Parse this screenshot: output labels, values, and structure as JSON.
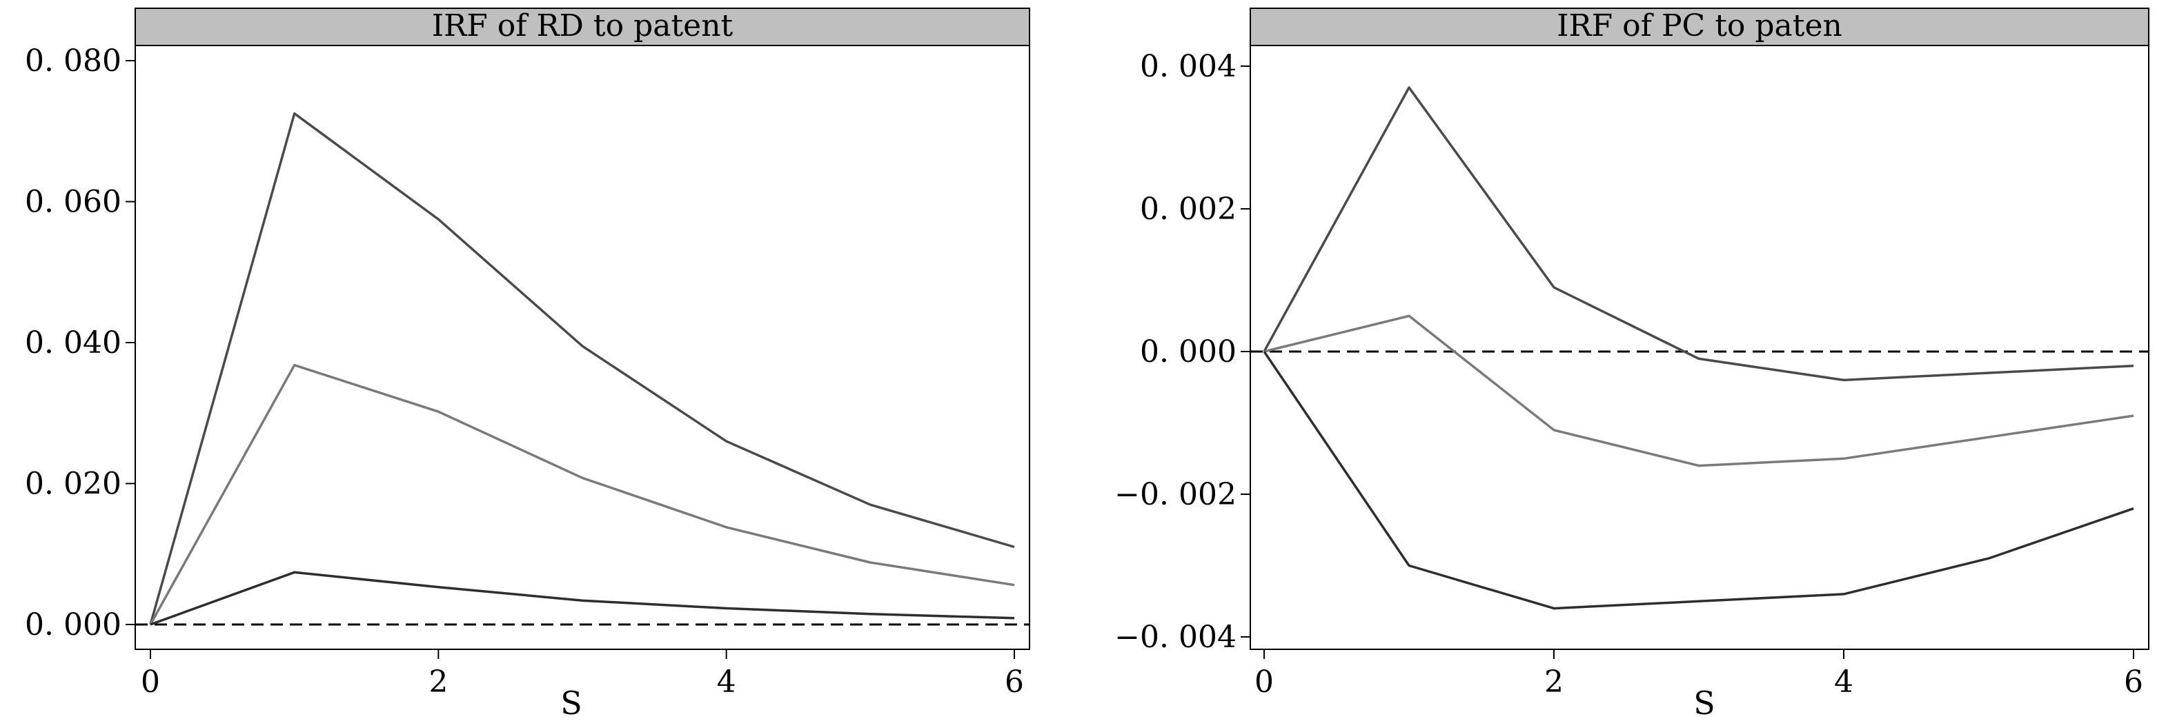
{
  "chart_data": [
    {
      "type": "line",
      "title": "IRF  of  RD to patent",
      "xlabel": "S",
      "ylabel": "",
      "xlim": [
        0,
        6
      ],
      "ylim": [
        0,
        0.08
      ],
      "xticks": [
        0,
        2,
        4,
        6
      ],
      "xtick_labels": [
        "0",
        "2",
        "4",
        "6"
      ],
      "yticks": [
        0,
        0.02,
        0.04,
        0.06,
        0.08
      ],
      "ytick_labels": [
        "0. 000",
        "0. 020",
        "0. 040",
        "0. 060",
        "0. 080"
      ],
      "x": [
        0,
        1,
        2,
        3,
        4,
        5,
        6
      ],
      "zero_line": true,
      "series": [
        {
          "values": [
            0,
            0.0725,
            0.0575,
            0.0395,
            0.026,
            0.017,
            0.011
          ],
          "color": "#4a4a4a"
        },
        {
          "values": [
            0,
            0.0368,
            0.0302,
            0.0208,
            0.0138,
            0.0088,
            0.0056
          ],
          "color": "#7a7a7a"
        },
        {
          "values": [
            0,
            0.0074,
            0.0053,
            0.0034,
            0.0023,
            0.0015,
            0.0009
          ],
          "color": "#2e2e2e"
        }
      ]
    },
    {
      "type": "line",
      "title": "IRF  of  PC  to  paten",
      "xlabel": "S",
      "ylabel": "",
      "xlim": [
        0,
        6
      ],
      "ylim": [
        -0.0042,
        0.0048
      ],
      "xticks": [
        0,
        2,
        4,
        6
      ],
      "xtick_labels": [
        "0",
        "2",
        "4",
        "6"
      ],
      "yticks": [
        -0.004,
        -0.002,
        0,
        0.002,
        0.004
      ],
      "ytick_labels": [
        "−0. 004",
        "−0. 002",
        "0. 000",
        "0. 002",
        "0. 004"
      ],
      "x": [
        0,
        1,
        2,
        3,
        4,
        5,
        6
      ],
      "zero_line": true,
      "series": [
        {
          "values": [
            0,
            0.0037,
            0.0009,
            -0.0001,
            -0.0004,
            -0.0003,
            -0.0002
          ],
          "color": "#4a4a4a"
        },
        {
          "values": [
            0,
            0.0005,
            -0.0011,
            -0.0016,
            -0.0015,
            -0.0012,
            -0.0009
          ],
          "color": "#7a7a7a"
        },
        {
          "values": [
            0,
            -0.003,
            -0.0036,
            -0.0035,
            -0.0034,
            -0.0029,
            -0.0022
          ],
          "color": "#2e2e2e"
        }
      ]
    }
  ]
}
